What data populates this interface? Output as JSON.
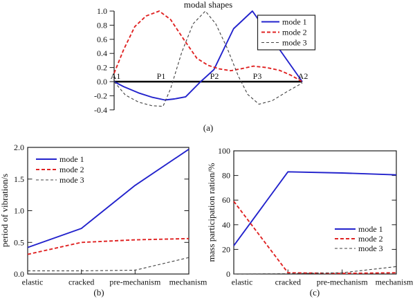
{
  "captions": {
    "a": "(a)",
    "b": "(b)",
    "c": "(c)"
  },
  "legend_labels": [
    "mode 1",
    "mode 2",
    "mode 3"
  ],
  "colors": {
    "mode1": "#2222cc",
    "mode2": "#e02222",
    "mode3": "#404040",
    "axis": "#1a1a1a"
  },
  "chart_data": [
    {
      "id": "a",
      "type": "line",
      "title": "modal shapes",
      "node_labels": [
        "A1",
        "P1",
        "P2",
        "P3",
        "A2"
      ],
      "ylim": [
        -0.4,
        1.0
      ],
      "ytick_labels": [
        "-0.4",
        "-0.2",
        "0.0",
        "0.2",
        "0.4",
        "0.6",
        "0.8",
        "1.0"
      ],
      "legend_position": "top-right-boxed",
      "x_axis_note": "x is normalized span position from A1 (0) to A2 (1); labels A1,P1,P2,P3,A2 sit on the zero line",
      "series": [
        {
          "name": "mode 1",
          "x": [
            0,
            0.05,
            0.13,
            0.2,
            0.27,
            0.32,
            0.38,
            0.46,
            0.53,
            0.635,
            0.735,
            1.0
          ],
          "y": [
            0,
            -0.07,
            -0.16,
            -0.22,
            -0.26,
            -0.245,
            -0.215,
            0.0,
            0.17,
            0.75,
            1.0,
            0.0
          ]
        },
        {
          "name": "mode 2",
          "x": [
            0,
            0.05,
            0.11,
            0.17,
            0.24,
            0.3,
            0.37,
            0.44,
            0.5,
            0.56,
            0.62,
            0.68,
            0.74,
            0.81,
            0.88,
            0.94,
            1.0
          ],
          "y": [
            0.12,
            0.45,
            0.78,
            0.93,
            1.0,
            0.88,
            0.6,
            0.33,
            0.23,
            0.18,
            0.155,
            0.185,
            0.22,
            0.2,
            0.16,
            0.09,
            0.0
          ]
        },
        {
          "name": "mode 3",
          "x": [
            0,
            0.06,
            0.13,
            0.2,
            0.26,
            0.3,
            0.36,
            0.42,
            0.485,
            0.54,
            0.6,
            0.66,
            0.71,
            0.77,
            0.84,
            0.92,
            1.0
          ],
          "y": [
            0,
            -0.19,
            -0.29,
            -0.34,
            -0.35,
            -0.1,
            0.42,
            0.82,
            1.0,
            0.82,
            0.48,
            0.08,
            -0.18,
            -0.32,
            -0.27,
            -0.14,
            -0.02
          ]
        }
      ]
    },
    {
      "id": "b",
      "type": "line",
      "ylabel": "period of vibration/s",
      "categories": [
        "elastic",
        "cracked",
        "pre-mechanism",
        "mechanism"
      ],
      "ylim": [
        0,
        2.0
      ],
      "ytick_labels": [
        "0.0",
        "0.5",
        "1.0",
        "1.5",
        "2.0"
      ],
      "legend_position": "top-left-unboxed",
      "series": [
        {
          "name": "mode 1",
          "values": [
            0.42,
            0.72,
            1.4,
            1.97
          ]
        },
        {
          "name": "mode 2",
          "values": [
            0.31,
            0.5,
            0.54,
            0.56
          ]
        },
        {
          "name": "mode 3",
          "values": [
            0.05,
            0.05,
            0.06,
            0.26
          ]
        }
      ]
    },
    {
      "id": "c",
      "type": "line",
      "ylabel": "mass participation ration/%",
      "categories": [
        "elastic",
        "cracked",
        "pre-mechanism",
        "mechanism"
      ],
      "ylim": [
        0,
        100
      ],
      "ytick_labels": [
        "0",
        "20",
        "40",
        "60",
        "80",
        "100"
      ],
      "legend_position": "middle-right-unboxed",
      "series": [
        {
          "name": "mode 1",
          "values": [
            23,
            83,
            82,
            80.5
          ]
        },
        {
          "name": "mode 2",
          "values": [
            59,
            1,
            0.5,
            1
          ]
        },
        {
          "name": "mode 3",
          "values": [
            0,
            0.3,
            1,
            6
          ]
        }
      ]
    }
  ]
}
